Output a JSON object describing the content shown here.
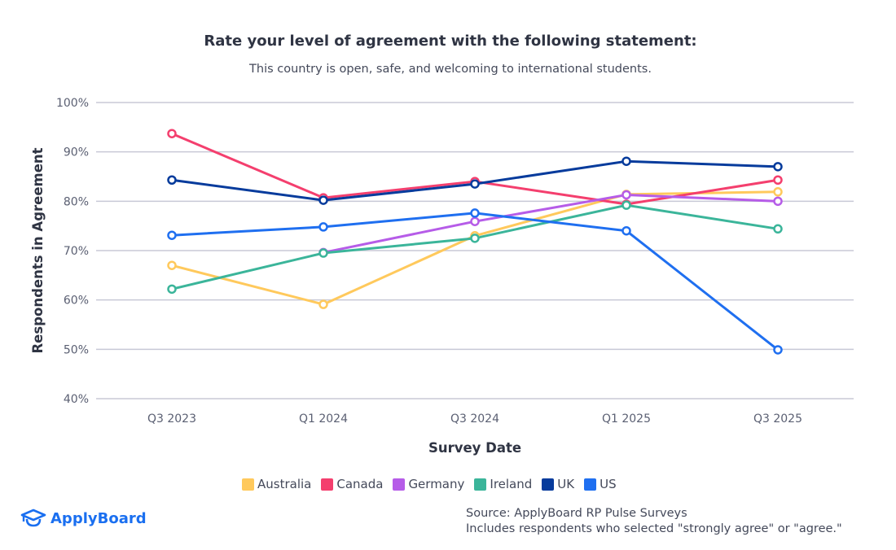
{
  "chart_data": {
    "type": "line",
    "title": "Rate your level of agreement with the following statement:",
    "subtitle": "This country is open, safe, and welcoming to international students.",
    "xlabel": "Survey Date",
    "ylabel": "Respondents in Agreement",
    "categories": [
      "Q3 2023",
      "Q1 2024",
      "Q3 2024",
      "Q1 2025",
      "Q3 2025"
    ],
    "ylim": [
      40,
      100
    ],
    "yticks": [
      "40%",
      "50%",
      "60%",
      "70%",
      "80%",
      "90%",
      "100%"
    ],
    "grid": true,
    "legend_position": "bottom",
    "series": [
      {
        "name": "Australia",
        "color": "#ffc95c",
        "values": [
          67.0,
          59.1,
          73.0,
          81.4,
          81.9
        ]
      },
      {
        "name": "Canada",
        "color": "#f43f6e",
        "values": [
          93.7,
          80.7,
          84.0,
          79.4,
          84.3
        ]
      },
      {
        "name": "Germany",
        "color": "#b65ce8",
        "values": [
          null,
          69.6,
          75.9,
          81.3,
          80.0
        ]
      },
      {
        "name": "Ireland",
        "color": "#3bb59a",
        "values": [
          62.2,
          69.5,
          72.5,
          79.2,
          74.4
        ]
      },
      {
        "name": "UK",
        "color": "#063b9c",
        "values": [
          84.3,
          80.2,
          83.5,
          88.1,
          87.0
        ]
      },
      {
        "name": "US",
        "color": "#1f6ff0",
        "values": [
          73.1,
          74.8,
          77.6,
          74.0,
          49.9
        ]
      }
    ]
  },
  "brand": {
    "name": "ApplyBoard",
    "color": "#1a6ff0"
  },
  "source": {
    "line1": "Source: ApplyBoard RP Pulse Surveys",
    "line2": "Includes respondents who selected \"strongly agree\" or \"agree.\""
  }
}
